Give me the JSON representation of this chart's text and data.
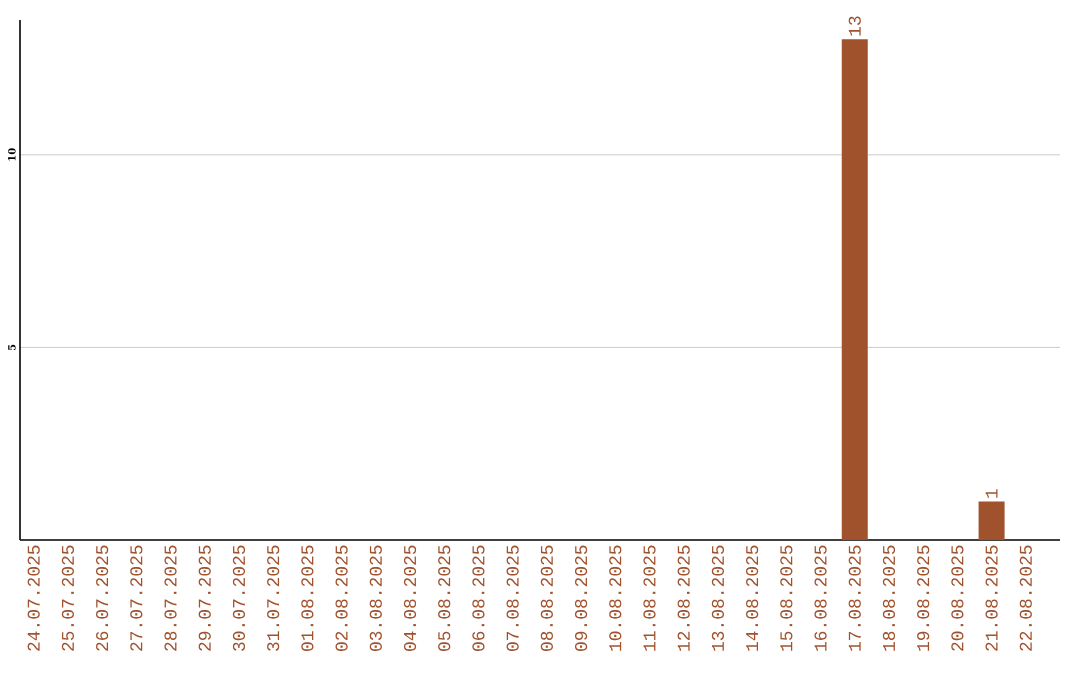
{
  "chart_data": {
    "type": "bar",
    "categories": [
      "24.07.2025",
      "25.07.2025",
      "26.07.2025",
      "27.07.2025",
      "28.07.2025",
      "29.07.2025",
      "30.07.2025",
      "31.07.2025",
      "01.08.2025",
      "02.08.2025",
      "03.08.2025",
      "04.08.2025",
      "05.08.2025",
      "06.08.2025",
      "07.08.2025",
      "08.08.2025",
      "09.08.2025",
      "10.08.2025",
      "11.08.2025",
      "12.08.2025",
      "13.08.2025",
      "14.08.2025",
      "15.08.2025",
      "16.08.2025",
      "17.08.2025",
      "18.08.2025",
      "19.08.2025",
      "20.08.2025",
      "21.08.2025",
      "22.08.2025"
    ],
    "values": [
      0,
      0,
      0,
      0,
      0,
      0,
      0,
      0,
      0,
      0,
      0,
      0,
      0,
      0,
      0,
      0,
      0,
      0,
      0,
      0,
      0,
      0,
      0,
      0,
      13,
      0,
      0,
      0,
      1,
      0
    ],
    "value_labels": [
      null,
      null,
      null,
      null,
      null,
      null,
      null,
      null,
      null,
      null,
      null,
      null,
      null,
      null,
      null,
      null,
      null,
      null,
      null,
      null,
      null,
      null,
      null,
      null,
      "13",
      null,
      null,
      null,
      "1",
      null
    ],
    "color": "#a0522d",
    "ylim": [
      0,
      13.5
    ],
    "yticks": [
      5,
      10
    ],
    "grid": "y"
  }
}
